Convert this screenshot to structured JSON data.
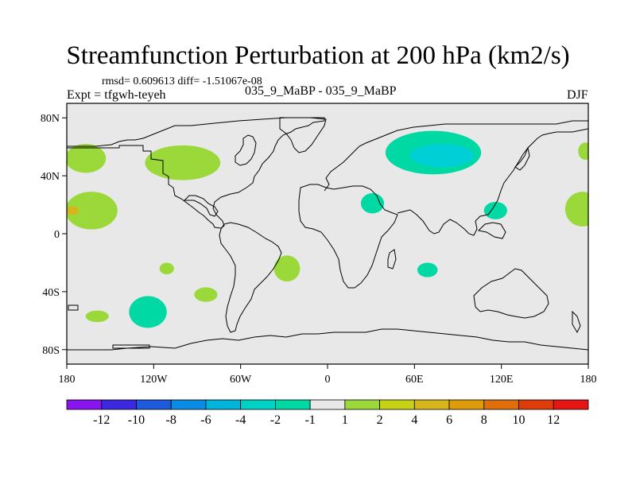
{
  "figure": {
    "title": "Streamfunction Perturbation at 200 hPa (km2/s)",
    "stats": "rmsd= 0.609613 diff= -1.51067e-08",
    "expt": "Expt = tfgwh-teyeh",
    "case": "035_9_MaBP - 035_9_MaBP",
    "season": "DJF"
  },
  "map": {
    "projection": "cylindrical equidistant",
    "lon_range": [
      -180,
      180
    ],
    "lat_range": [
      -90,
      90
    ],
    "background_color": "#e8e8e8",
    "x_ticks": [
      {
        "value": -180,
        "label": "180"
      },
      {
        "value": -120,
        "label": "120W"
      },
      {
        "value": -60,
        "label": "60W"
      },
      {
        "value": 0,
        "label": "0"
      },
      {
        "value": 60,
        "label": "60E"
      },
      {
        "value": 120,
        "label": "120E"
      },
      {
        "value": 180,
        "label": "180"
      }
    ],
    "y_ticks": [
      {
        "value": 80,
        "label": "80N"
      },
      {
        "value": 40,
        "label": "40N"
      },
      {
        "value": 0,
        "label": "0"
      },
      {
        "value": -40,
        "label": "40S"
      },
      {
        "value": -80,
        "label": "80S"
      }
    ],
    "anomalies": [
      {
        "name": "nw-pacific-high",
        "lon": -167,
        "lat": 52,
        "rlon": 14,
        "rlat": 10,
        "color": "#9bd93b"
      },
      {
        "name": "north-pacific-high",
        "lon": -100,
        "lat": 49,
        "rlon": 26,
        "rlat": 12,
        "color": "#9bd93b"
      },
      {
        "name": "west-pacific-tropical-high",
        "lon": -163,
        "lat": 16,
        "rlon": 18,
        "rlat": 13,
        "color": "#9bd93b"
      },
      {
        "name": "west-pacific-tropical-core",
        "lon": -176,
        "lat": 16,
        "rlon": 4,
        "rlat": 3,
        "color": "#d8b51a"
      },
      {
        "name": "asia-low-outer",
        "lon": 73,
        "lat": 56,
        "rlon": 33,
        "rlat": 15,
        "color": "#00d9a4"
      },
      {
        "name": "asia-low-inner",
        "lon": 79,
        "lat": 54,
        "rlon": 22,
        "rlat": 8,
        "color": "#00cfd6"
      },
      {
        "name": "east-africa-low",
        "lon": 31,
        "lat": 21,
        "rlon": 8,
        "rlat": 7,
        "color": "#00d9a4"
      },
      {
        "name": "se-asia-low",
        "lon": 116,
        "lat": 16,
        "rlon": 8,
        "rlat": 6,
        "color": "#00d9a4"
      },
      {
        "name": "east-pacific-edge-high",
        "lon": 176,
        "lat": 17,
        "rlon": 12,
        "rlat": 12,
        "color": "#9bd93b"
      },
      {
        "name": "north-atlantic-edge-high",
        "lon": 178,
        "lat": 57,
        "rlon": 5,
        "rlat": 6,
        "color": "#9bd93b"
      },
      {
        "name": "south-atlantic-high",
        "lon": -28,
        "lat": -24,
        "rlon": 9,
        "rlat": 9,
        "color": "#9bd93b"
      },
      {
        "name": "south-indian-low",
        "lon": 69,
        "lat": -25,
        "rlon": 7,
        "rlat": 5,
        "color": "#00d9a4"
      },
      {
        "name": "south-america-high",
        "lon": -111,
        "lat": -24,
        "rlon": 5,
        "rlat": 4,
        "color": "#9bd93b"
      },
      {
        "name": "south-pacific-low",
        "lon": -124,
        "lat": -54,
        "rlon": 13,
        "rlat": 11,
        "color": "#00d9a4"
      },
      {
        "name": "south-america-high-2",
        "lon": -84,
        "lat": -42,
        "rlon": 8,
        "rlat": 5,
        "color": "#9bd93b"
      },
      {
        "name": "south-pacific-high-2",
        "lon": -159,
        "lat": -57,
        "rlon": 8,
        "rlat": 4,
        "color": "#9bd93b"
      }
    ]
  },
  "colorbar": {
    "colors": [
      "#8a14f0",
      "#3c28e0",
      "#1e5adc",
      "#0a8ce6",
      "#00b4dc",
      "#00d2c8",
      "#00d9a4",
      "#e8e8e8",
      "#9bd93b",
      "#c8d214",
      "#d8b51a",
      "#e09b0a",
      "#e06e0a",
      "#e03c0a",
      "#e61414"
    ],
    "labels": [
      "-12",
      "-10",
      "-8",
      "-6",
      "-4",
      "-2",
      "-1",
      "1",
      "2",
      "4",
      "6",
      "8",
      "10",
      "12"
    ]
  }
}
